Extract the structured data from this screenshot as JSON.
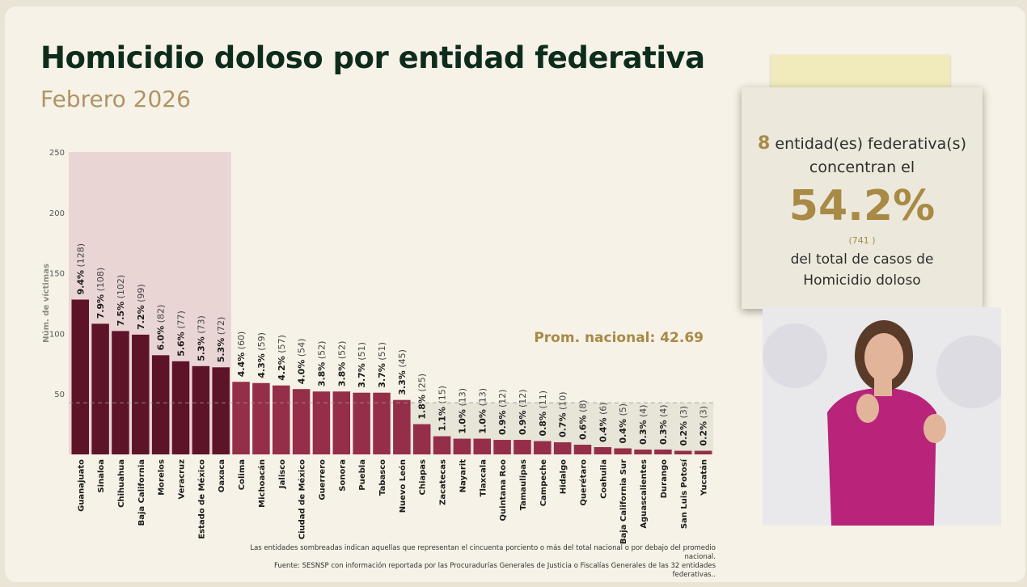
{
  "header": {
    "title": "Homicidio doloso por entidad federativa",
    "subtitle": "Febrero 2026"
  },
  "chart_data": {
    "type": "bar",
    "ylabel": "Núm. de víctimas",
    "ylim": [
      0,
      250
    ],
    "yticks": [
      50,
      100,
      150,
      200,
      250
    ],
    "categories": [
      "Guanajuato",
      "Sinaloa",
      "Chihuahua",
      "Baja California",
      "Morelos",
      "Veracruz",
      "Estado de México",
      "Oaxaca",
      "Colima",
      "Michoacán",
      "Jalisco",
      "Ciudad de México",
      "Guerrero",
      "Sonora",
      "Puebla",
      "Tabasco",
      "Nuevo León",
      "Chiapas",
      "Zacatecas",
      "Nayarit",
      "Tlaxcala",
      "Quintana Roo",
      "Tamaulipas",
      "Campeche",
      "Hidalgo",
      "Querétaro",
      "Coahuila",
      "Baja California Sur",
      "Aguascalientes",
      "Durango",
      "San Luis Potosí",
      "Yucatán"
    ],
    "values": [
      128,
      108,
      102,
      99,
      82,
      77,
      73,
      72,
      60,
      59,
      57,
      54,
      52,
      52,
      51,
      51,
      45,
      25,
      15,
      13,
      13,
      12,
      12,
      11,
      10,
      8,
      6,
      5,
      4,
      4,
      3,
      3
    ],
    "percents": [
      "9.4%",
      "7.9%",
      "7.5%",
      "7.2%",
      "6.0%",
      "5.6%",
      "5.3%",
      "5.3%",
      "4.4%",
      "4.3%",
      "4.2%",
      "4.0%",
      "3.8%",
      "3.8%",
      "3.7%",
      "3.7%",
      "3.3%",
      "1.8%",
      "1.1%",
      "1.0%",
      "1.0%",
      "0.9%",
      "0.9%",
      "0.8%",
      "0.7%",
      "0.6%",
      "0.4%",
      "0.4%",
      "0.3%",
      "0.3%",
      "0.2%",
      "0.2%"
    ],
    "average": 42.69,
    "average_label": "Prom. nacional: 42.69",
    "highlighted_count": 8,
    "colors": {
      "top": "#5e1428",
      "rest": "#952e48",
      "shade_top": "#ead5d5",
      "shade_low": "#e7e4d8",
      "average": "#a88a45"
    }
  },
  "note": {
    "count": "8",
    "line1": "entidad(es) federativa(s)",
    "line2": "concentran el",
    "percent": "54.2%",
    "cases": "(741 )",
    "line3": "del total de casos de",
    "line4": "Homicidio doloso"
  },
  "footnote": {
    "line1": "Las entidades sombreadas indican aquellas que representan el cincuenta porciento o más del total nacional o por debajo del promedio nacional.",
    "line2": "Fuente: SESNSP con información reportada por las Procuradurías Generales de Justicia o Fiscalías Generales de las 32 entidades federativas.."
  }
}
